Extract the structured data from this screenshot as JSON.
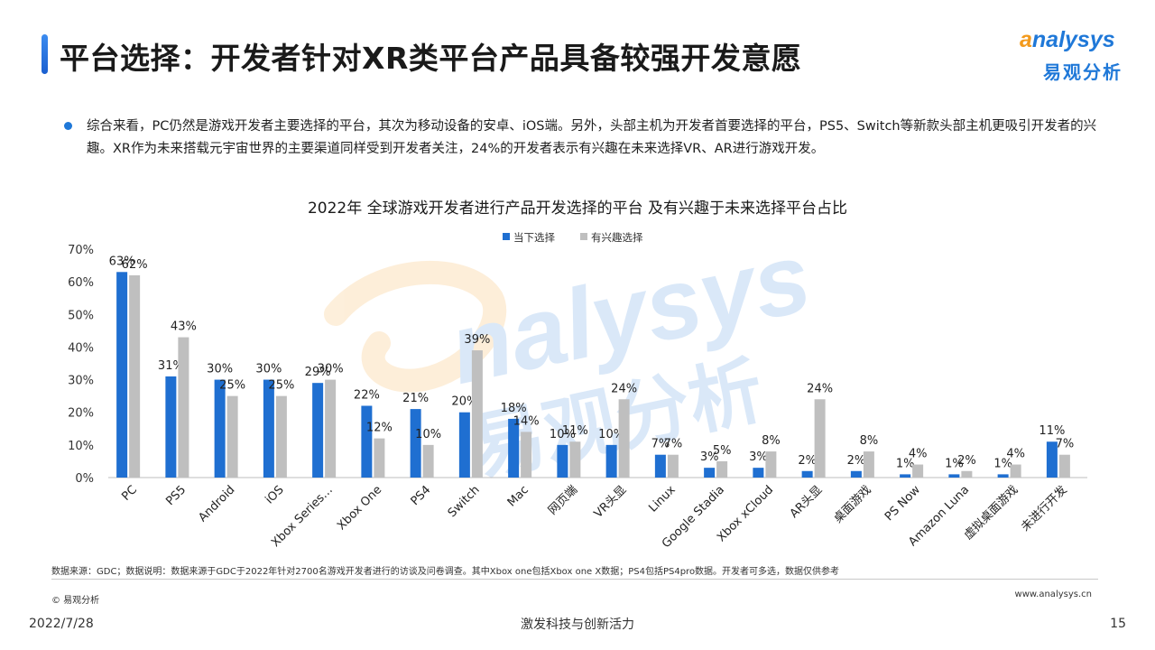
{
  "header": {
    "title": "平台选择：开发者针对XR类平台产品具备较强开发意愿",
    "logo_en_prefix": "a",
    "logo_en_rest": "nalysys",
    "logo_cn": "易观分析"
  },
  "summary": "综合来看，PC仍然是游戏开发者主要选择的平台，其次为移动设备的安卓、iOS端。另外，头部主机为开发者首要选择的平台，PS5、Switch等新款头部主机更吸引开发者的兴趣。XR作为未来搭载元宇宙世界的主要渠道同样受到开发者关注，24%的开发者表示有兴趣在未来选择VR、AR进行游戏开发。",
  "chart_data": {
    "type": "bar",
    "title": "2022年 全球游戏开发者进行产品开发选择的平台 及有兴趣于未来选择平台占比",
    "categories": [
      "PC",
      "PS5",
      "Android",
      "iOS",
      "Xbox Series…",
      "Xbox One",
      "PS4",
      "Switch",
      "Mac",
      "网页端",
      "VR头显",
      "Linux",
      "Google Stadia",
      "Xbox xCloud",
      "AR头显",
      "桌面游戏",
      "PS Now",
      "Amazon Luna",
      "虚拟桌面游戏",
      "未进行开发"
    ],
    "series": [
      {
        "name": "当下选择",
        "color": "#1f6fd1",
        "values": [
          63,
          31,
          30,
          30,
          29,
          22,
          21,
          20,
          18,
          10,
          10,
          7,
          3,
          3,
          2,
          2,
          1,
          1,
          1,
          11
        ]
      },
      {
        "name": "有兴趣选择",
        "color": "#bfbfbf",
        "values": [
          62,
          43,
          25,
          25,
          30,
          12,
          10,
          39,
          14,
          11,
          24,
          7,
          5,
          8,
          24,
          8,
          4,
          2,
          4,
          7
        ]
      }
    ],
    "ylim": [
      0,
      70
    ],
    "yticks": [
      "0%",
      "10%",
      "20%",
      "30%",
      "40%",
      "50%",
      "60%",
      "70%"
    ],
    "value_suffix": "%",
    "legend": "top-center",
    "grid": false
  },
  "footer": {
    "source": "数据来源：GDC；数据说明：数据来源于GDC于2022年针对2700名游戏开发者进行的访谈及问卷调查。其中Xbox one包括Xbox one X数据；PS4包括PS4pro数据。开发者可多选，数据仅供参考",
    "copyright": "© 易观分析",
    "website": "www.analysys.cn",
    "date": "2022/7/28",
    "slogan": "激发科技与创新活力",
    "page_number": "15"
  }
}
